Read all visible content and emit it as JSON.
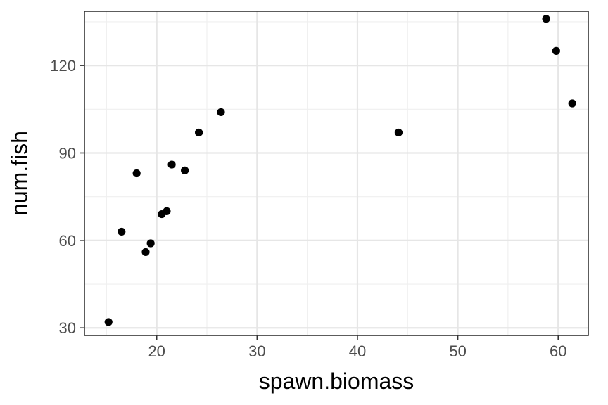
{
  "chart_data": {
    "type": "scatter",
    "title": "",
    "xlabel": "spawn.biomass",
    "ylabel": "num.fish",
    "xlim": [
      12.8,
      63.0
    ],
    "ylim": [
      27.4,
      138.6
    ],
    "x_ticks": [
      20,
      30,
      40,
      50,
      60
    ],
    "x_minor_ticks": [
      15,
      25,
      35,
      45,
      55
    ],
    "y_ticks": [
      30,
      60,
      90,
      120
    ],
    "y_minor_ticks": [
      45,
      75,
      105,
      135
    ],
    "grid": true,
    "legend": "none",
    "theme": "bw",
    "point_color": "#000000",
    "points": [
      {
        "x": 15.2,
        "y": 32
      },
      {
        "x": 16.5,
        "y": 63
      },
      {
        "x": 18.0,
        "y": 83
      },
      {
        "x": 18.9,
        "y": 56
      },
      {
        "x": 19.4,
        "y": 59
      },
      {
        "x": 20.5,
        "y": 69
      },
      {
        "x": 21.0,
        "y": 70
      },
      {
        "x": 21.5,
        "y": 86
      },
      {
        "x": 22.8,
        "y": 84
      },
      {
        "x": 24.2,
        "y": 97
      },
      {
        "x": 26.4,
        "y": 104
      },
      {
        "x": 44.1,
        "y": 97
      },
      {
        "x": 58.8,
        "y": 136
      },
      {
        "x": 59.8,
        "y": 125
      },
      {
        "x": 61.4,
        "y": 107
      }
    ]
  }
}
